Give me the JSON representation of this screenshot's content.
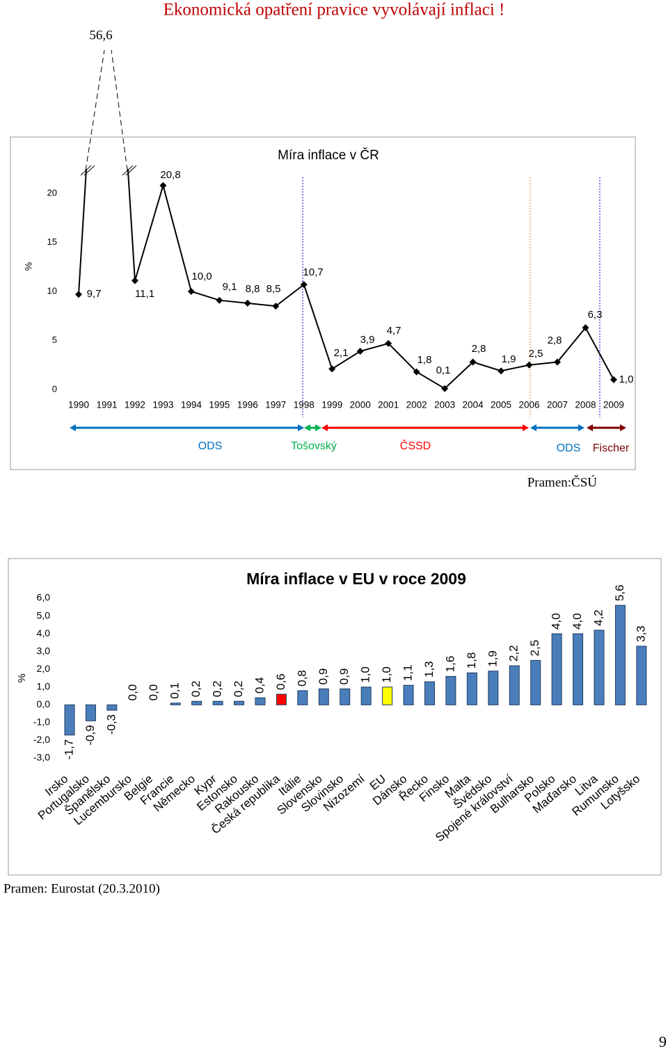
{
  "title": "Ekonomická opatření pravice vyvolávají inflaci !",
  "page_number": "9",
  "chart_data": [
    {
      "type": "line",
      "title": "Míra inflace v ČR",
      "y_label": "%",
      "categories": [
        "1990",
        "1991",
        "1992",
        "1993",
        "1994",
        "1995",
        "1996",
        "1997",
        "1998",
        "1999",
        "2000",
        "2001",
        "2002",
        "2003",
        "2004",
        "2005",
        "2006",
        "2007",
        "2008",
        "2009"
      ],
      "series": [
        {
          "name": "Míra inflace",
          "color": "#000000",
          "values": [
            9.7,
            56.6,
            11.1,
            20.8,
            10.0,
            9.1,
            8.8,
            8.5,
            10.7,
            2.1,
            3.9,
            4.7,
            1.8,
            0.1,
            2.8,
            1.9,
            2.5,
            2.8,
            6.3,
            1.0
          ],
          "value_labels": [
            "9,7",
            "56,6",
            "11,1",
            "20,8",
            "10,0",
            "9,1",
            "8,8",
            "8,5",
            "10,7",
            "2,1",
            "3,9",
            "4,7",
            "1,8",
            "0,1",
            "2,8",
            "1,9",
            "2,5",
            "2,8",
            "6,3",
            "1,0"
          ]
        }
      ],
      "ylim": [
        0,
        20
      ],
      "yticks": [
        0,
        5,
        10,
        15,
        20
      ],
      "periods": [
        {
          "label": "ODS",
          "color": "#0070c0"
        },
        {
          "label": "Tošovský",
          "color": "#00b050"
        },
        {
          "label": "ČSSD",
          "color": "#ff0000"
        },
        {
          "label": "ODS",
          "color": "#0070c0"
        },
        {
          "label": "Fischer",
          "color": "#7f0000"
        }
      ],
      "source": "Pramen:ČSÚ"
    },
    {
      "type": "bar",
      "title": "Míra inflace v EU v roce 2009",
      "y_label": "%",
      "categories": [
        "Irsko",
        "Portugalsko",
        "Španělsko",
        "Lucembursko",
        "Belgie",
        "Francie",
        "Německo",
        "Kypr",
        "Estonsko",
        "Rakousko",
        "Česká republika",
        "Itálie",
        "Slovensko",
        "Slovinsko",
        "Nizozemí",
        "EU",
        "Dánsko",
        "Řecko",
        "Finsko",
        "Malta",
        "Švédsko",
        "Spojené království",
        "Bulharsko",
        "Polsko",
        "Maďarsko",
        "Litva",
        "Rumunsko",
        "Lotyšsko"
      ],
      "values": [
        -1.7,
        -0.9,
        -0.3,
        0.0,
        0.0,
        0.1,
        0.2,
        0.2,
        0.2,
        0.4,
        0.6,
        0.8,
        0.9,
        0.9,
        1.0,
        1.0,
        1.1,
        1.3,
        1.6,
        1.8,
        1.9,
        2.2,
        2.5,
        4.0,
        4.0,
        4.2,
        5.6,
        3.3
      ],
      "value_labels": [
        "-1,7",
        "-0,9",
        "-0,3",
        "0,0",
        "0,0",
        "0,1",
        "0,2",
        "0,2",
        "0,2",
        "0,4",
        "0,6",
        "0,8",
        "0,9",
        "0,9",
        "1,0",
        "1,0",
        "1,1",
        "1,3",
        "1,6",
        "1,8",
        "1,9",
        "2,2",
        "2,5",
        "4,0",
        "4,0",
        "4,2",
        "5,6",
        "3,3"
      ],
      "color": "#4a7ebb",
      "colors": {
        "10": "#ff0000",
        "15": "#ffff00"
      },
      "ylim": [
        -3,
        6
      ],
      "yticks": [
        {
          "value": -3,
          "label": "-3,0"
        },
        {
          "value": -2,
          "label": "-2,0"
        },
        {
          "value": -1,
          "label": "-1,0"
        },
        {
          "value": 0,
          "label": "0,0"
        },
        {
          "value": 1,
          "label": "1,0"
        },
        {
          "value": 2,
          "label": "2,0"
        },
        {
          "value": 3,
          "label": "3,0"
        },
        {
          "value": 4,
          "label": "4,0"
        },
        {
          "value": 5,
          "label": "5,0"
        },
        {
          "value": 6,
          "label": "6,0"
        }
      ],
      "source": "Pramen: Eurostat (20.3.2010)"
    }
  ]
}
